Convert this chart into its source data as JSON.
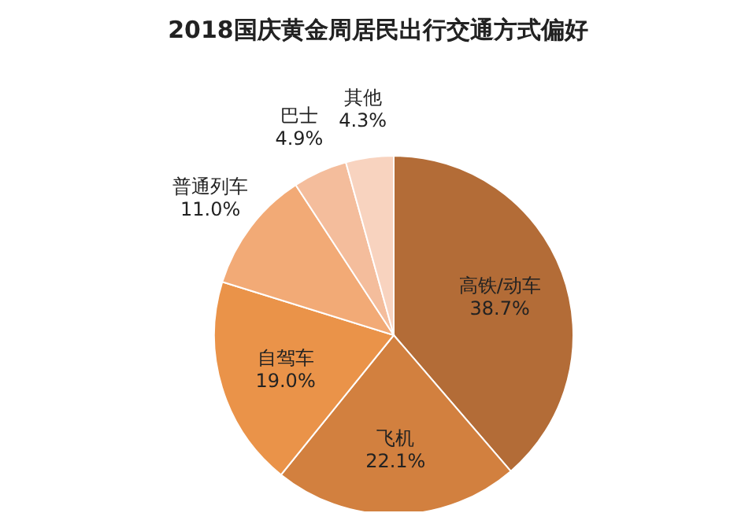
{
  "chart_data": {
    "type": "pie",
    "title": "2018国庆黄金周居民出行交通方式偏好",
    "categories": [
      "高铁/动车",
      "飞机",
      "自驾车",
      "普通列车",
      "巴士",
      "其他"
    ],
    "values": [
      38.7,
      22.1,
      19.0,
      11.0,
      4.9,
      4.3
    ],
    "colors": [
      "#b36c37",
      "#d2803f",
      "#ea9349",
      "#f2aa76",
      "#f4bd9c",
      "#f8d3bf"
    ],
    "value_labels": [
      "38.7%",
      "22.1%",
      "19.0%",
      "11.0%",
      "4.9%",
      "4.3%"
    ]
  }
}
